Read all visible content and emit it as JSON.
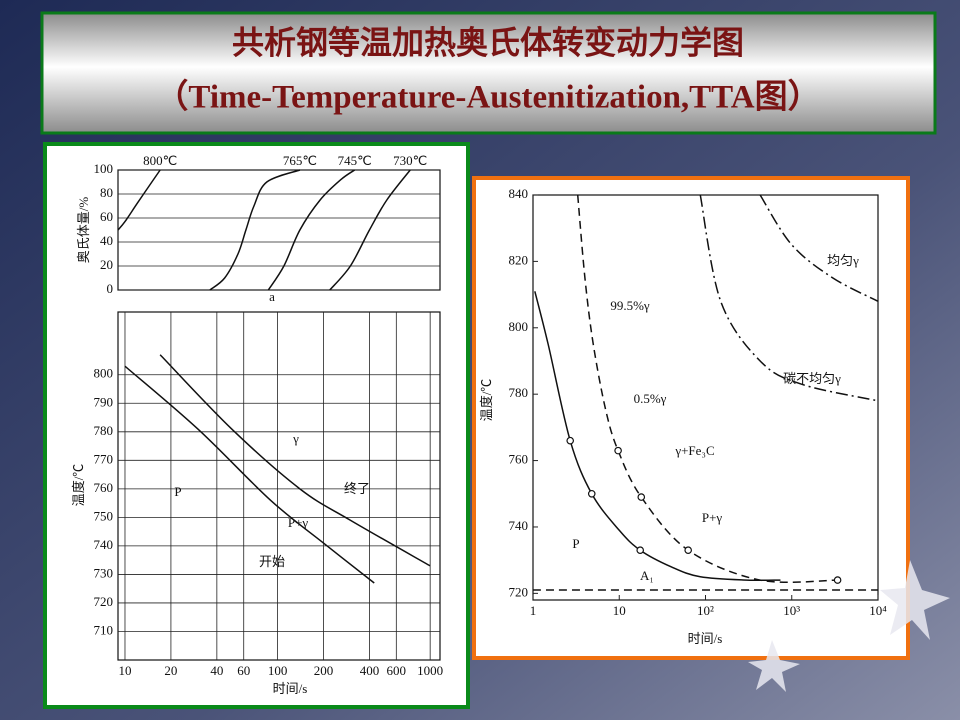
{
  "header": {
    "title": "共析钢等温加热奥氏体转变动力学图",
    "subtitle": "（Time-Temperature-Austenitization,TTA图）"
  },
  "chart_data": [
    {
      "type": "line",
      "xscale": "log",
      "grid": true,
      "ylabel": "奥氏体量/%",
      "annotations": [
        "a"
      ],
      "xlim": [
        9,
        1160
      ],
      "ylim": [
        0,
        100
      ],
      "yticks": [
        0,
        20,
        40,
        60,
        80,
        100
      ],
      "series": [
        {
          "name": "800℃",
          "color": "#111111",
          "line_style": "solid",
          "x": [
            9,
            10,
            12,
            15,
            17
          ],
          "values": [
            50,
            57,
            72,
            90,
            100
          ]
        },
        {
          "name": "765℃",
          "color": "#111111",
          "line_style": "solid",
          "x": [
            36,
            45,
            55,
            62,
            70,
            85,
            140
          ],
          "values": [
            0,
            10,
            30,
            50,
            70,
            90,
            100
          ]
        },
        {
          "name": "745℃",
          "color": "#111111",
          "line_style": "solid",
          "x": [
            87,
            110,
            140,
            190,
            260,
            320
          ],
          "values": [
            0,
            20,
            50,
            75,
            92,
            100
          ]
        },
        {
          "name": "730℃",
          "color": "#111111",
          "line_style": "solid",
          "x": [
            220,
            300,
            400,
            520,
            740
          ],
          "values": [
            0,
            20,
            50,
            75,
            100
          ]
        }
      ]
    },
    {
      "type": "line",
      "xscale": "log",
      "grid": true,
      "ylabel": "温度/℃",
      "xlabel": "时间/s",
      "annotations": [
        "γ",
        "P",
        "P+γ"
      ],
      "xlim": [
        9,
        1160
      ],
      "ylim": [
        700,
        822
      ],
      "xticks": [
        10,
        20,
        40,
        60,
        100,
        200,
        400,
        600,
        1000
      ],
      "yticks": [
        710,
        720,
        730,
        740,
        750,
        760,
        770,
        780,
        790,
        800
      ],
      "series": [
        {
          "name": "开始",
          "color": "#111111",
          "line_style": "solid",
          "x": [
            10,
            30,
            90,
            200,
            430
          ],
          "values": [
            803,
            781,
            756,
            741,
            727
          ]
        },
        {
          "name": "终了",
          "color": "#111111",
          "line_style": "solid",
          "x": [
            17,
            50,
            140,
            300,
            1000
          ],
          "values": [
            807,
            781,
            760,
            749,
            733
          ]
        }
      ]
    },
    {
      "type": "line",
      "xscale": "log",
      "grid": false,
      "ylabel": "温度/℃",
      "xlabel": "时间/s",
      "annotations": [
        "均匀γ",
        "碳不均匀γ",
        "γ+Fe₃C",
        "P+γ",
        "P",
        "A₁"
      ],
      "xlim": [
        1,
        10000
      ],
      "ylim": [
        718,
        840
      ],
      "xticks": [
        1,
        10,
        {
          "value": 100,
          "label": "10²"
        },
        {
          "value": 1000,
          "label": "10³"
        },
        {
          "value": 10000,
          "label": "10⁴"
        }
      ],
      "yticks": [
        720,
        740,
        760,
        780,
        800,
        820,
        840
      ],
      "series": [
        {
          "name": "0.5%γ",
          "color": "#111111",
          "line_style": "solid",
          "x": [
            1.05,
            1.5,
            2.7,
            4.8,
            10,
            17.5,
            40,
            87,
            300,
            740
          ],
          "values": [
            811,
            795,
            766,
            750,
            739,
            733,
            728,
            725,
            724,
            724
          ]
        },
        {
          "name": "99.5%γ",
          "color": "#111111",
          "line_style": "dashed",
          "x": [
            3.3,
            4,
            5,
            7,
            9.7,
            18,
            63,
            430,
            3400
          ],
          "values": [
            840,
            815,
            795,
            775,
            763,
            749,
            733,
            724,
            724
          ]
        },
        {
          "color": "#111111",
          "line_style": "dashdot",
          "x": [
            87,
            150,
            430,
            1300,
            10000
          ],
          "values": [
            840,
            808,
            790,
            783,
            778
          ]
        },
        {
          "color": "#111111",
          "line_style": "dashdot",
          "x": [
            430,
            1000,
            3000,
            10000
          ],
          "values": [
            840,
            825,
            815,
            808
          ]
        },
        {
          "color": "#111111",
          "line_style": "dashed",
          "x": [
            1,
            10000
          ],
          "values": [
            721,
            721
          ]
        },
        {
          "color": "#111111",
          "line_style": "markers",
          "x": [
            2.7,
            4.8,
            17.5,
            9.7,
            18,
            63,
            3400
          ],
          "values": [
            766,
            750,
            733,
            763,
            749,
            733,
            724
          ]
        }
      ]
    }
  ]
}
